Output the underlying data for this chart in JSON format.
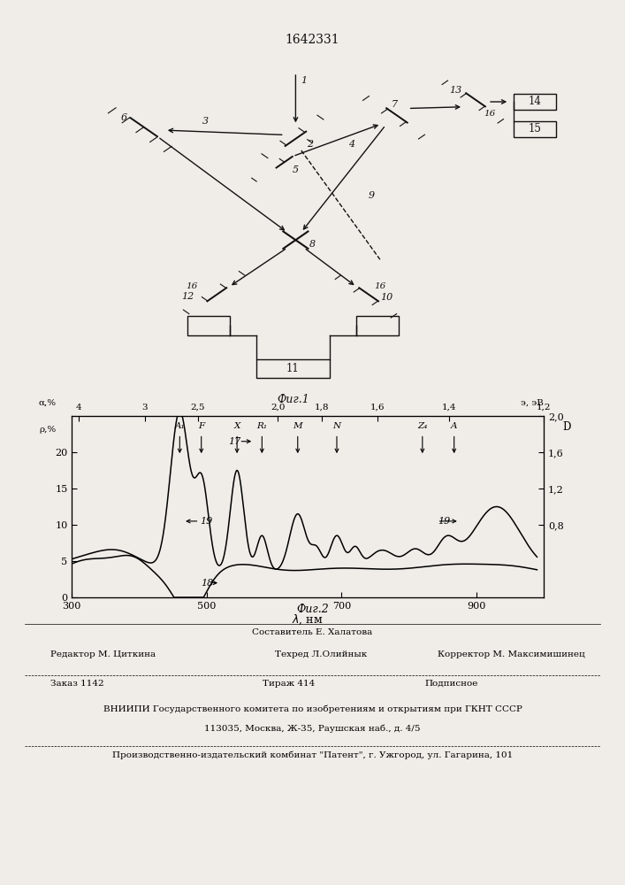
{
  "title": "1642331",
  "fig1_caption": "Фиг.1",
  "fig2_caption": "Фиг.2",
  "bg": "#f0ede8",
  "lc": "#111111",
  "footer_line1a": "Составитель Е. Халатова",
  "footer_line1b": "Редактор М. Циткина",
  "footer_line1c": "Техред Л.Олийнык",
  "footer_line1d": "Корректор М. Максимишинец",
  "footer_line2a": "Заказ 1142",
  "footer_line2b": "Тираж 414",
  "footer_line2c": "Подписное",
  "footer_line3": "ВНИИПИ Государственного комитета по изобретениям и открытиям при ГКНТ СССР",
  "footer_line4": "113035, Москва, Ж-35, Раушская наб., д. 4/5",
  "footer_line5": "Производственно-издательский комбинат \"Патент\", г. Ужгород, ул. Гагарина, 101"
}
